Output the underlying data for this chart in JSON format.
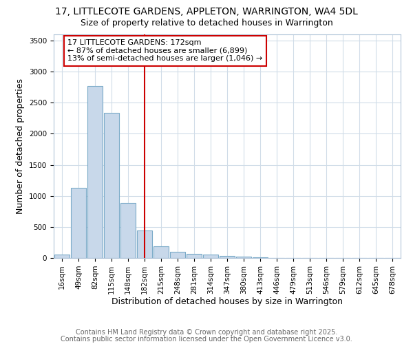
{
  "title_line1": "17, LITTLECOTE GARDENS, APPLETON, WARRINGTON, WA4 5DL",
  "title_line2": "Size of property relative to detached houses in Warrington",
  "xlabel": "Distribution of detached houses by size in Warrington",
  "ylabel": "Number of detached properties",
  "categories": [
    "16sqm",
    "49sqm",
    "82sqm",
    "115sqm",
    "148sqm",
    "182sqm",
    "215sqm",
    "248sqm",
    "281sqm",
    "314sqm",
    "347sqm",
    "380sqm",
    "413sqm",
    "446sqm",
    "479sqm",
    "513sqm",
    "546sqm",
    "579sqm",
    "612sqm",
    "645sqm",
    "678sqm"
  ],
  "values": [
    50,
    1130,
    2770,
    2340,
    890,
    440,
    185,
    100,
    70,
    50,
    30,
    20,
    10,
    5,
    3,
    2,
    1,
    1,
    1,
    1,
    1
  ],
  "bar_color": "#c8d8ea",
  "bar_edge_color": "#7aaac8",
  "vline_x_idx": 5,
  "vline_color": "#cc0000",
  "annotation_text": "17 LITTLECOTE GARDENS: 172sqm\n← 87% of detached houses are smaller (6,899)\n13% of semi-detached houses are larger (1,046) →",
  "annotation_box_color": "#cc0000",
  "ylim": [
    0,
    3600
  ],
  "yticks": [
    0,
    500,
    1000,
    1500,
    2000,
    2500,
    3000,
    3500
  ],
  "plot_bg_color": "#ffffff",
  "fig_bg_color": "#ffffff",
  "grid_color": "#d0dce8",
  "footer_line1": "Contains HM Land Registry data © Crown copyright and database right 2025.",
  "footer_line2": "Contains public sector information licensed under the Open Government Licence v3.0.",
  "title_fontsize": 10,
  "subtitle_fontsize": 9,
  "axis_label_fontsize": 9,
  "tick_fontsize": 7.5,
  "annotation_fontsize": 8,
  "footer_fontsize": 7
}
